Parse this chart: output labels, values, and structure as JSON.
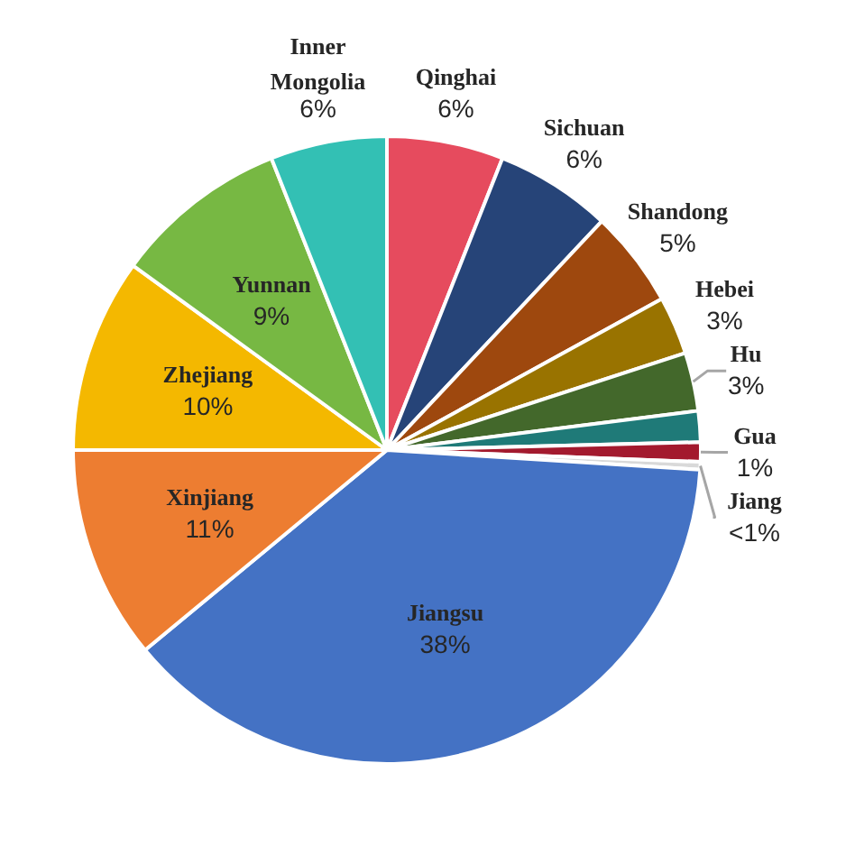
{
  "chart_data": {
    "type": "pie",
    "categories": [
      "Qinghai",
      "Sichuan",
      "Shandong",
      "Hebei",
      "Hu",
      null,
      "Gua",
      "Jiang",
      "Jiangsu",
      "Xinjiang",
      "Zhejiang",
      "Yunnan",
      "Inner Mongolia"
    ],
    "values": [
      6,
      6,
      5,
      3,
      3,
      1.6,
      1,
      0.4,
      38,
      11,
      10,
      9,
      6
    ],
    "colors": [
      "#e64b5e",
      "#264478",
      "#9e480e",
      "#997300",
      "#43682b",
      "#1f7a78",
      "#a31a2e",
      "#d9d9d9",
      "#4472c4",
      "#ed7d31",
      "#f4b800",
      "#77b843",
      "#33c0b4"
    ],
    "value_labels": [
      "6%",
      "6%",
      "5%",
      "3%",
      "3%",
      null,
      "1%",
      "<1%",
      "38%",
      "11%",
      "10%",
      "9%",
      "6%"
    ]
  }
}
